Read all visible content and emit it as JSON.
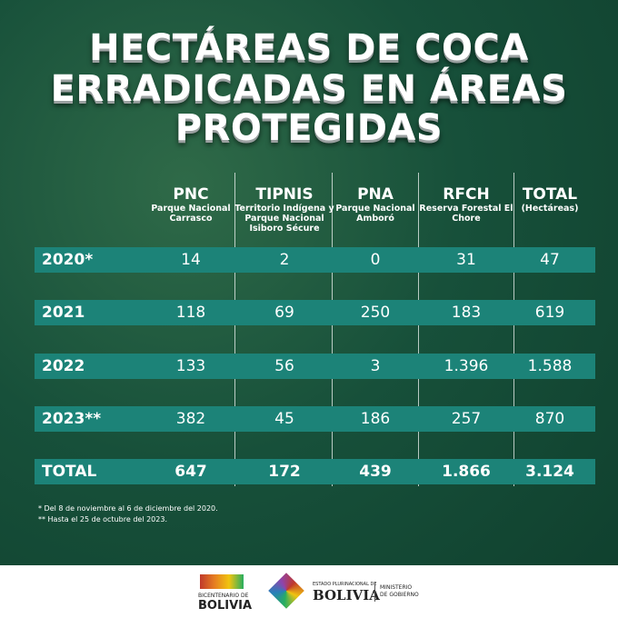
{
  "title": [
    "HECTÁREAS DE COCA",
    "ERRADICADAS EN ÁREAS",
    "PROTEGIDAS"
  ],
  "table": {
    "columns": [
      {
        "abbr": "PNC",
        "full": "Parque Nacional Carrasco"
      },
      {
        "abbr": "TIPNIS",
        "full": "Territorio Indígena y Parque Nacional Isiboro Sécure"
      },
      {
        "abbr": "PNA",
        "full": "Parque Nacional Amboró"
      },
      {
        "abbr": "RFCH",
        "full": "Reserva Forestal El Chore"
      },
      {
        "abbr": "TOTAL",
        "full": "(Hectáreas)"
      }
    ],
    "rows": [
      {
        "label": "2020*",
        "values": [
          "14",
          "2",
          "0",
          "31",
          "47"
        ]
      },
      {
        "label": "2021",
        "values": [
          "118",
          "69",
          "250",
          "183",
          "619"
        ]
      },
      {
        "label": "2022",
        "values": [
          "133",
          "56",
          "3",
          "1.396",
          "1.588"
        ]
      },
      {
        "label": "2023**",
        "values": [
          "382",
          "45",
          "186",
          "257",
          "870"
        ]
      },
      {
        "label": "TOTAL",
        "values": [
          "647",
          "172",
          "439",
          "1.866",
          "3.124"
        ]
      }
    ]
  },
  "footnotes": [
    "* Del 8 de noviembre al 6 de diciembre del 2020.",
    "** Hasta el 25 de octubre del 2023."
  ],
  "footer": [
    "BICENTENARIO DE",
    "BOLIVIA",
    "ESTADO PLURINACIONAL DE",
    "BOLIVIA",
    "MINISTERIO",
    "DE GOBIERNO"
  ]
}
